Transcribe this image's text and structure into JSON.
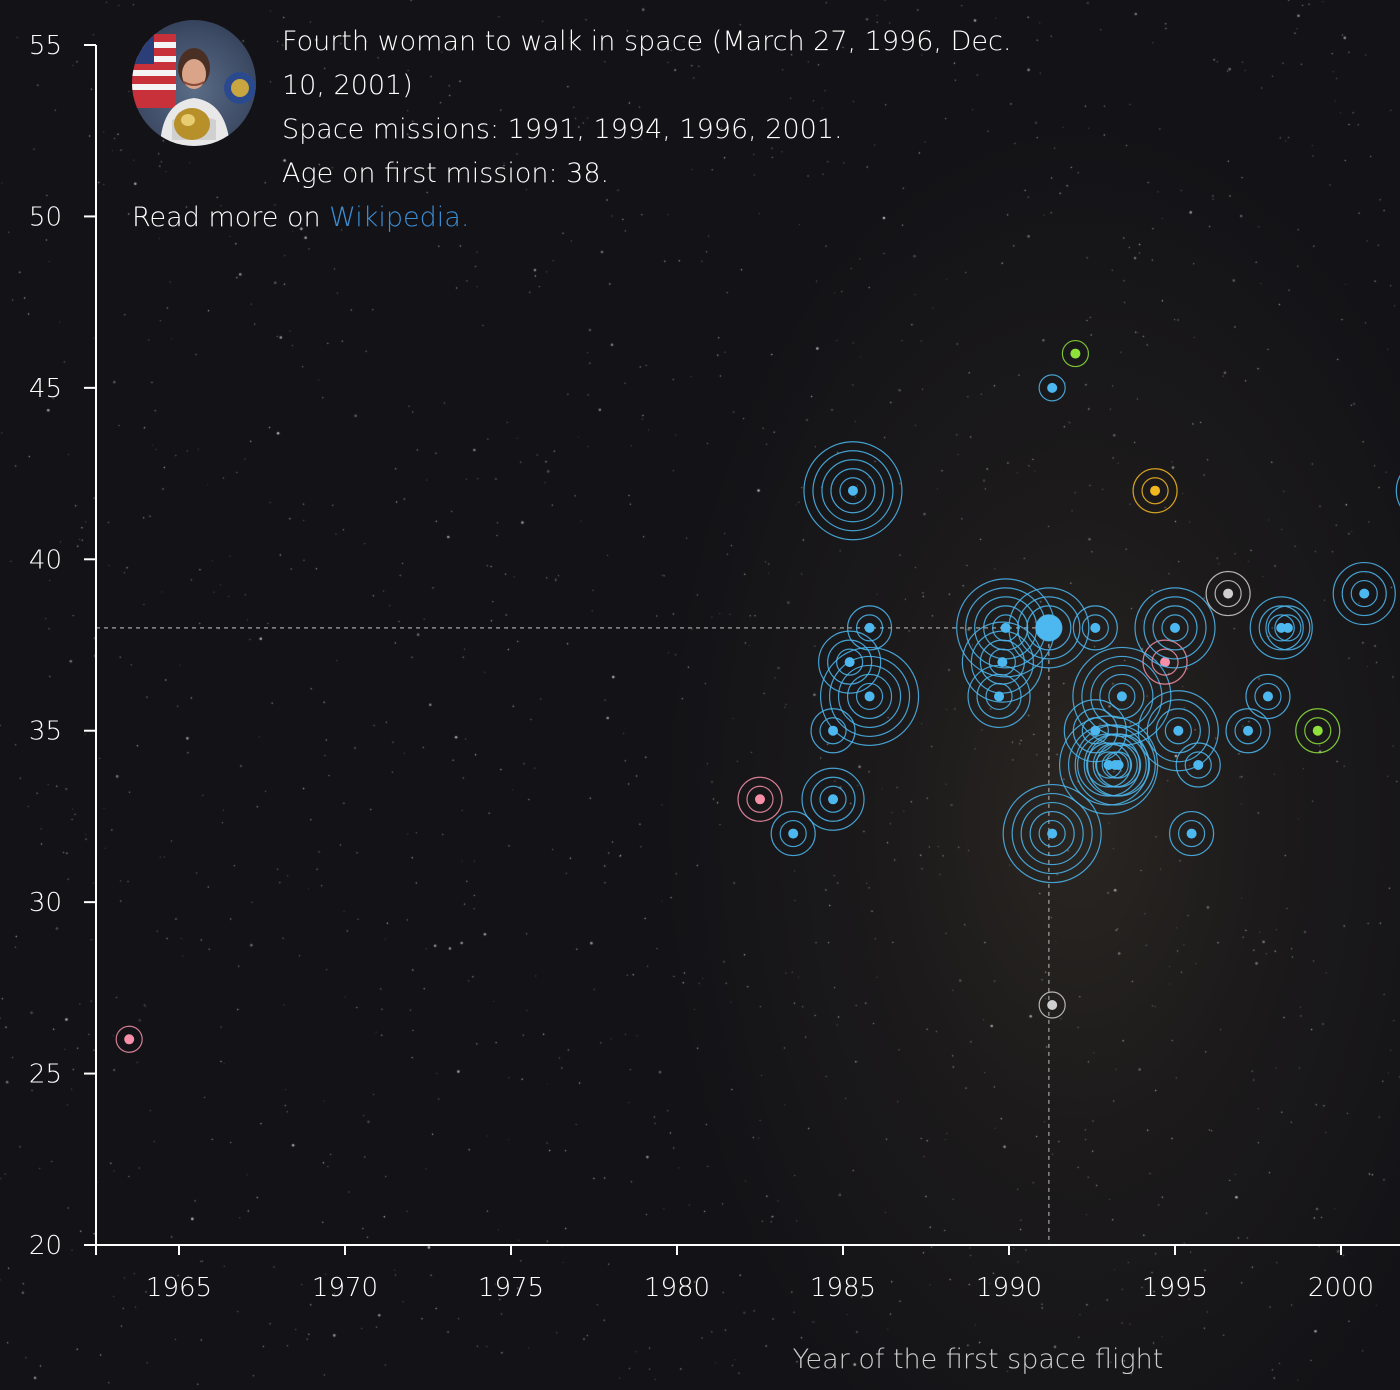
{
  "tooltip": {
    "description": "Fourth woman to walk in space (March 27, 1996, Dec. 10, 2001)",
    "missions": "Space missions: 1991, 1994, 1996, 2001.",
    "age": "Age on first mission: 38.",
    "read_more_prefix": "Read more on",
    "link_text": "Wikipedia."
  },
  "colors": {
    "blue": "#4db8f0",
    "pink": "#f590a8",
    "green": "#8ee03a",
    "gold": "#f2b820",
    "gray": "#cfcfcf",
    "axis": "#ffffff",
    "guide": "#8a8a8a",
    "link": "#3b8ed4"
  },
  "chart_data": {
    "type": "scatter",
    "xlabel": "Year of the first space flight",
    "ylabel": "",
    "xlim": [
      1962.5,
      2002
    ],
    "ylim": [
      20,
      55
    ],
    "xticks": [
      1965,
      1970,
      1975,
      1980,
      1985,
      1990,
      1995,
      2000
    ],
    "yticks": [
      20,
      25,
      30,
      35,
      40,
      45,
      50,
      55
    ],
    "grid": false,
    "highlight": {
      "x": 1991.2,
      "y": 38
    },
    "points": [
      {
        "x": 1963.5,
        "y": 26,
        "missions": 1,
        "color": "pink"
      },
      {
        "x": 1982.5,
        "y": 33,
        "missions": 2,
        "color": "pink"
      },
      {
        "x": 1983.5,
        "y": 32,
        "missions": 2,
        "color": "blue"
      },
      {
        "x": 1984.7,
        "y": 33,
        "missions": 3,
        "color": "blue"
      },
      {
        "x": 1984.7,
        "y": 35,
        "missions": 2,
        "color": "blue"
      },
      {
        "x": 1985.3,
        "y": 42,
        "missions": 5,
        "color": "blue"
      },
      {
        "x": 1985.2,
        "y": 37,
        "missions": 3,
        "color": "blue"
      },
      {
        "x": 1985.8,
        "y": 36,
        "missions": 5,
        "color": "blue"
      },
      {
        "x": 1985.8,
        "y": 38,
        "missions": 2,
        "color": "blue"
      },
      {
        "x": 1989.7,
        "y": 36,
        "missions": 3,
        "color": "blue"
      },
      {
        "x": 1989.8,
        "y": 37,
        "missions": 4,
        "color": "blue"
      },
      {
        "x": 1989.9,
        "y": 38,
        "missions": 5,
        "color": "blue"
      },
      {
        "x": 1991.2,
        "y": 38,
        "missions": 4,
        "color": "blue"
      },
      {
        "x": 1991.3,
        "y": 45,
        "missions": 1,
        "color": "blue"
      },
      {
        "x": 1991.3,
        "y": 32,
        "missions": 5,
        "color": "blue"
      },
      {
        "x": 1991.3,
        "y": 27,
        "missions": 1,
        "color": "gray"
      },
      {
        "x": 1992.0,
        "y": 46,
        "missions": 1,
        "color": "green"
      },
      {
        "x": 1992.6,
        "y": 38,
        "missions": 2,
        "color": "blue"
      },
      {
        "x": 1992.6,
        "y": 35,
        "missions": 3,
        "color": "blue"
      },
      {
        "x": 1993.0,
        "y": 34,
        "missions": 5,
        "color": "blue"
      },
      {
        "x": 1993.2,
        "y": 34,
        "missions": 4,
        "color": "blue"
      },
      {
        "x": 1993.4,
        "y": 36,
        "missions": 5,
        "color": "blue"
      },
      {
        "x": 1993.3,
        "y": 34,
        "missions": 3,
        "color": "blue"
      },
      {
        "x": 1994.4,
        "y": 42,
        "missions": 2,
        "color": "gold"
      },
      {
        "x": 1994.7,
        "y": 37,
        "missions": 2,
        "color": "pink"
      },
      {
        "x": 1995.0,
        "y": 38,
        "missions": 4,
        "color": "blue"
      },
      {
        "x": 1995.1,
        "y": 35,
        "missions": 4,
        "color": "blue"
      },
      {
        "x": 1995.7,
        "y": 34,
        "missions": 2,
        "color": "blue"
      },
      {
        "x": 1995.5,
        "y": 32,
        "missions": 2,
        "color": "blue"
      },
      {
        "x": 1996.6,
        "y": 39,
        "missions": 2,
        "color": "gray"
      },
      {
        "x": 1997.2,
        "y": 35,
        "missions": 2,
        "color": "blue"
      },
      {
        "x": 1997.8,
        "y": 36,
        "missions": 2,
        "color": "blue"
      },
      {
        "x": 1998.2,
        "y": 38,
        "missions": 3,
        "color": "blue"
      },
      {
        "x": 1998.4,
        "y": 38,
        "missions": 2,
        "color": "blue"
      },
      {
        "x": 1999.3,
        "y": 35,
        "missions": 2,
        "color": "green"
      },
      {
        "x": 2000.7,
        "y": 39,
        "missions": 3,
        "color": "blue"
      },
      {
        "x": 2002.6,
        "y": 42,
        "missions": 3,
        "color": "blue"
      }
    ]
  }
}
